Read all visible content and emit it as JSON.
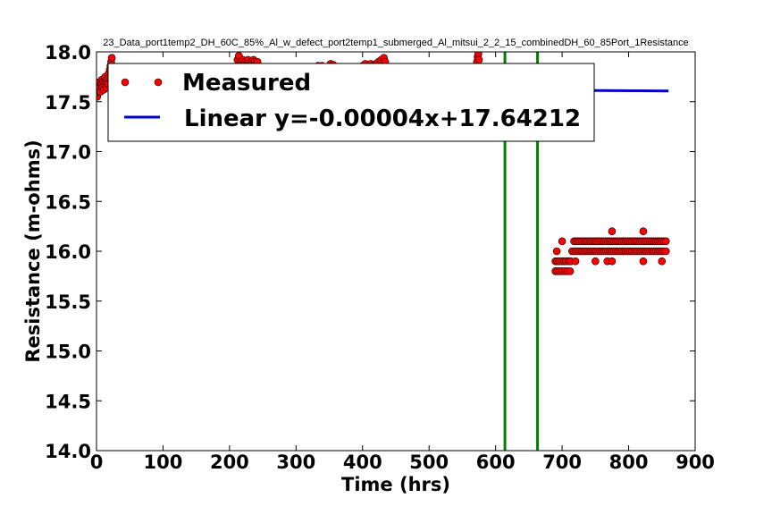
{
  "chart_data": {
    "type": "scatter",
    "title": "23_Data_port1temp2_DH_60C_85%_Al_w_defect_port2temp1_submerged_Al_mitsui_2_2_15_combinedDH_60_85Port_1Resistance",
    "xlabel": "Time (hrs)",
    "ylabel": "Resistance (m-ohms)",
    "xlim": [
      0,
      900
    ],
    "ylim": [
      14.0,
      18.0
    ],
    "xticks": [
      "0",
      "100",
      "200",
      "300",
      "400",
      "500",
      "600",
      "700",
      "800",
      "900"
    ],
    "yticks": [
      "14.0",
      "14.5",
      "15.0",
      "15.5",
      "16.0",
      "16.5",
      "17.0",
      "17.5",
      "18.0"
    ],
    "grid": false,
    "legend_position": "top-left",
    "series": [
      {
        "name": "Measured",
        "kind": "markers",
        "color": "#ff0000",
        "points": [
          [
            1,
            17.55
          ],
          [
            2,
            17.6
          ],
          [
            3,
            17.62
          ],
          [
            4,
            17.65
          ],
          [
            5,
            17.7
          ],
          [
            6,
            17.6
          ],
          [
            7,
            17.68
          ],
          [
            8,
            17.72
          ],
          [
            9,
            17.65
          ],
          [
            10,
            17.7
          ],
          [
            11,
            17.62
          ],
          [
            12,
            17.68
          ],
          [
            13,
            17.75
          ],
          [
            14,
            17.7
          ],
          [
            15,
            17.64
          ],
          [
            16,
            17.72
          ],
          [
            17,
            17.68
          ],
          [
            18,
            17.78
          ],
          [
            19,
            17.74
          ],
          [
            20,
            17.82
          ],
          [
            21,
            17.86
          ],
          [
            22,
            17.9
          ],
          [
            23,
            17.94
          ],
          [
            24,
            17.8
          ],
          [
            25,
            17.75
          ],
          [
            26,
            17.7
          ],
          [
            27,
            17.72
          ],
          [
            28,
            17.68
          ],
          [
            29,
            17.74
          ],
          [
            30,
            17.7
          ],
          [
            32,
            17.66
          ],
          [
            34,
            17.72
          ],
          [
            36,
            17.68
          ],
          [
            208,
            17.8
          ],
          [
            210,
            17.85
          ],
          [
            212,
            17.92
          ],
          [
            214,
            17.96
          ],
          [
            216,
            17.9
          ],
          [
            218,
            17.88
          ],
          [
            220,
            17.92
          ],
          [
            222,
            17.86
          ],
          [
            224,
            17.9
          ],
          [
            226,
            17.88
          ],
          [
            228,
            17.92
          ],
          [
            230,
            17.86
          ],
          [
            232,
            17.9
          ],
          [
            234,
            17.88
          ],
          [
            236,
            17.92
          ],
          [
            238,
            17.9
          ],
          [
            240,
            17.88
          ],
          [
            242,
            17.9
          ],
          [
            330,
            17.84
          ],
          [
            333,
            17.86
          ],
          [
            336,
            17.82
          ],
          [
            339,
            17.86
          ],
          [
            350,
            17.85
          ],
          [
            352,
            17.88
          ],
          [
            354,
            17.86
          ],
          [
            356,
            17.87
          ],
          [
            358,
            17.85
          ],
          [
            400,
            17.86
          ],
          [
            404,
            17.88
          ],
          [
            408,
            17.85
          ],
          [
            412,
            17.88
          ],
          [
            416,
            17.86
          ],
          [
            420,
            17.88
          ],
          [
            424,
            17.9
          ],
          [
            428,
            17.92
          ],
          [
            432,
            17.94
          ],
          [
            434,
            17.9
          ],
          [
            572,
            17.9
          ],
          [
            573,
            17.95
          ],
          [
            574,
            17.98
          ],
          [
            575,
            17.92
          ],
          [
            690,
            15.8
          ],
          [
            693,
            15.8
          ],
          [
            696,
            15.8
          ],
          [
            700,
            15.8
          ],
          [
            704,
            15.8
          ],
          [
            708,
            15.8
          ],
          [
            712,
            15.8
          ],
          [
            690,
            15.9
          ],
          [
            693,
            15.9
          ],
          [
            696,
            15.9
          ],
          [
            700,
            15.9
          ],
          [
            703,
            15.9
          ],
          [
            706,
            15.9
          ],
          [
            710,
            15.9
          ],
          [
            713,
            15.9
          ],
          [
            692,
            16.0
          ],
          [
            700,
            16.1
          ],
          [
            715,
            16.0
          ],
          [
            718,
            16.0
          ],
          [
            721,
            16.0
          ],
          [
            724,
            16.0
          ],
          [
            727,
            16.0
          ],
          [
            730,
            16.0
          ],
          [
            733,
            16.0
          ],
          [
            736,
            16.0
          ],
          [
            739,
            16.0
          ],
          [
            742,
            16.0
          ],
          [
            745,
            16.0
          ],
          [
            748,
            16.0
          ],
          [
            751,
            16.0
          ],
          [
            754,
            16.0
          ],
          [
            757,
            16.0
          ],
          [
            760,
            16.0
          ],
          [
            763,
            16.0
          ],
          [
            766,
            16.0
          ],
          [
            769,
            16.0
          ],
          [
            772,
            16.0
          ],
          [
            775,
            16.0
          ],
          [
            778,
            16.0
          ],
          [
            781,
            16.0
          ],
          [
            784,
            16.0
          ],
          [
            787,
            16.0
          ],
          [
            790,
            16.0
          ],
          [
            793,
            16.0
          ],
          [
            796,
            16.0
          ],
          [
            799,
            16.0
          ],
          [
            802,
            16.0
          ],
          [
            805,
            16.0
          ],
          [
            808,
            16.0
          ],
          [
            811,
            16.0
          ],
          [
            814,
            16.0
          ],
          [
            817,
            16.0
          ],
          [
            820,
            16.0
          ],
          [
            823,
            16.0
          ],
          [
            826,
            16.0
          ],
          [
            829,
            16.0
          ],
          [
            832,
            16.0
          ],
          [
            835,
            16.0
          ],
          [
            838,
            16.0
          ],
          [
            841,
            16.0
          ],
          [
            844,
            16.0
          ],
          [
            847,
            16.0
          ],
          [
            850,
            16.0
          ],
          [
            853,
            16.0
          ],
          [
            856,
            16.0
          ],
          [
            718,
            16.1
          ],
          [
            721,
            16.1
          ],
          [
            724,
            16.1
          ],
          [
            727,
            16.1
          ],
          [
            730,
            16.1
          ],
          [
            733,
            16.1
          ],
          [
            736,
            16.1
          ],
          [
            739,
            16.1
          ],
          [
            742,
            16.1
          ],
          [
            745,
            16.1
          ],
          [
            748,
            16.1
          ],
          [
            751,
            16.1
          ],
          [
            754,
            16.1
          ],
          [
            757,
            16.1
          ],
          [
            760,
            16.1
          ],
          [
            763,
            16.1
          ],
          [
            766,
            16.1
          ],
          [
            769,
            16.1
          ],
          [
            772,
            16.1
          ],
          [
            775,
            16.1
          ],
          [
            778,
            16.1
          ],
          [
            781,
            16.1
          ],
          [
            784,
            16.1
          ],
          [
            787,
            16.1
          ],
          [
            790,
            16.1
          ],
          [
            793,
            16.1
          ],
          [
            796,
            16.1
          ],
          [
            799,
            16.1
          ],
          [
            802,
            16.1
          ],
          [
            805,
            16.1
          ],
          [
            808,
            16.1
          ],
          [
            811,
            16.1
          ],
          [
            814,
            16.1
          ],
          [
            817,
            16.1
          ],
          [
            820,
            16.1
          ],
          [
            823,
            16.1
          ],
          [
            826,
            16.1
          ],
          [
            829,
            16.1
          ],
          [
            832,
            16.1
          ],
          [
            835,
            16.1
          ],
          [
            838,
            16.1
          ],
          [
            841,
            16.1
          ],
          [
            844,
            16.1
          ],
          [
            847,
            16.1
          ],
          [
            850,
            16.1
          ],
          [
            853,
            16.1
          ],
          [
            856,
            16.1
          ],
          [
            720,
            15.9
          ],
          [
            750,
            15.9
          ],
          [
            768,
            15.9
          ],
          [
            775,
            15.9
          ],
          [
            822,
            15.9
          ],
          [
            850,
            15.9
          ],
          [
            775,
            16.2
          ],
          [
            822,
            16.2
          ]
        ]
      },
      {
        "name": "Linear y=-0.00004x+17.64212",
        "kind": "line",
        "color": "#0000cc",
        "slope": -4e-05,
        "intercept": 17.64212,
        "x_range": [
          0,
          860
        ]
      }
    ],
    "vertical_lines": [
      {
        "x": 614,
        "color": "#008000"
      },
      {
        "x": 663,
        "color": "#008000"
      }
    ]
  }
}
